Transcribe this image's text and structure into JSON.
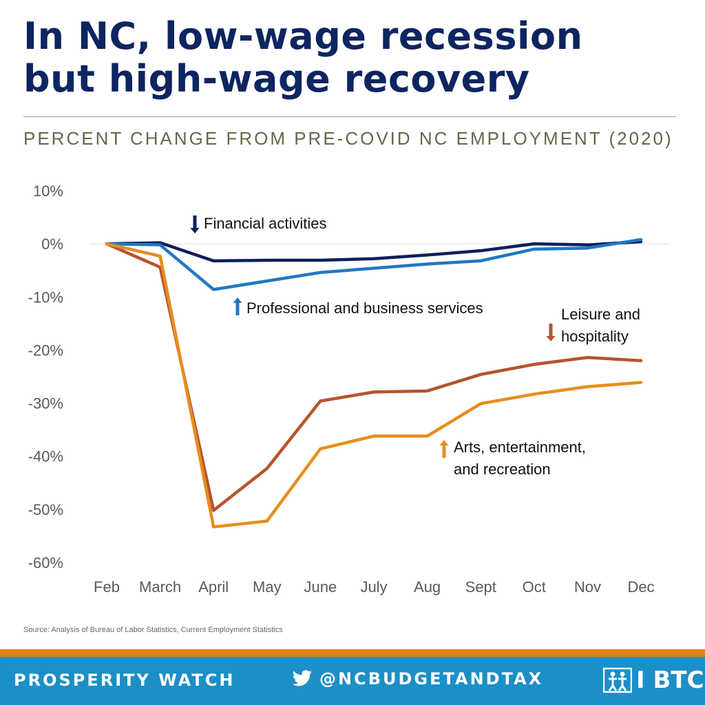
{
  "header": {
    "title_lines": [
      "In NC, low-wage recession",
      "but high-wage recovery"
    ],
    "subtitle": "PERCENT CHANGE FROM PRE-COVID NC EMPLOYMENT (2020)"
  },
  "chart_data": {
    "type": "line",
    "categories": [
      "Feb",
      "March",
      "April",
      "May",
      "June",
      "July",
      "Aug",
      "Sept",
      "Oct",
      "Nov",
      "Dec"
    ],
    "ylim": [
      -60,
      10
    ],
    "yticks": [
      10,
      0,
      -10,
      -20,
      -30,
      -40,
      -50,
      -60
    ],
    "ytick_labels": [
      "10%",
      "0%",
      "-10%",
      "-20%",
      "-30%",
      "-40%",
      "-50%",
      "-60%"
    ],
    "grid": false,
    "series": [
      {
        "name": "Financial activities",
        "color": "#0d1f5c",
        "values": [
          0,
          0.2,
          -3.2,
          -3.1,
          -3.1,
          -2.8,
          -2.1,
          -1.3,
          0,
          -0.2,
          0.4
        ]
      },
      {
        "name": "Professional and business services",
        "color": "#1f78c1",
        "values": [
          0,
          -0.2,
          -8.6,
          -7.0,
          -5.4,
          -4.6,
          -3.8,
          -3.2,
          -1.0,
          -0.8,
          0.8
        ]
      },
      {
        "name": "Leisure and hospitality",
        "color": "#b5542c",
        "values": [
          0,
          -4.4,
          -50.2,
          -42.3,
          -29.6,
          -27.9,
          -27.7,
          -24.6,
          -22.7,
          -21.4,
          -22.0
        ]
      },
      {
        "name": "Arts, entertainment, and recreation",
        "color": "#e58e1e",
        "values": [
          0,
          -2.3,
          -53.3,
          -52.2,
          -38.6,
          -36.2,
          -36.2,
          -30.1,
          -28.3,
          -26.9,
          -26.1
        ]
      }
    ],
    "annotations": [
      {
        "lines": [
          "Financial activities"
        ],
        "arrow": "down",
        "arrow_color": "#0d1f5c"
      },
      {
        "lines": [
          "Professional and business services"
        ],
        "arrow": "up",
        "arrow_color": "#1f78c1"
      },
      {
        "lines": [
          "Leisure and",
          "hospitality"
        ],
        "arrow": "down",
        "arrow_color": "#b5542c"
      },
      {
        "lines": [
          "Arts, entertainment,",
          "and recreation"
        ],
        "arrow": "up",
        "arrow_color": "#e58e1e"
      }
    ]
  },
  "source": "Source: Analysis of Bureau of Labor Statistics, Current Employment Statistics",
  "footer": {
    "left_text": "PROSPERITY WATCH",
    "twitter_icon": "twitter-bird-icon",
    "handle": "@NCBUDGETANDTAX",
    "logo_icon": "btc-people-icon",
    "logo_text": "I BTC"
  }
}
